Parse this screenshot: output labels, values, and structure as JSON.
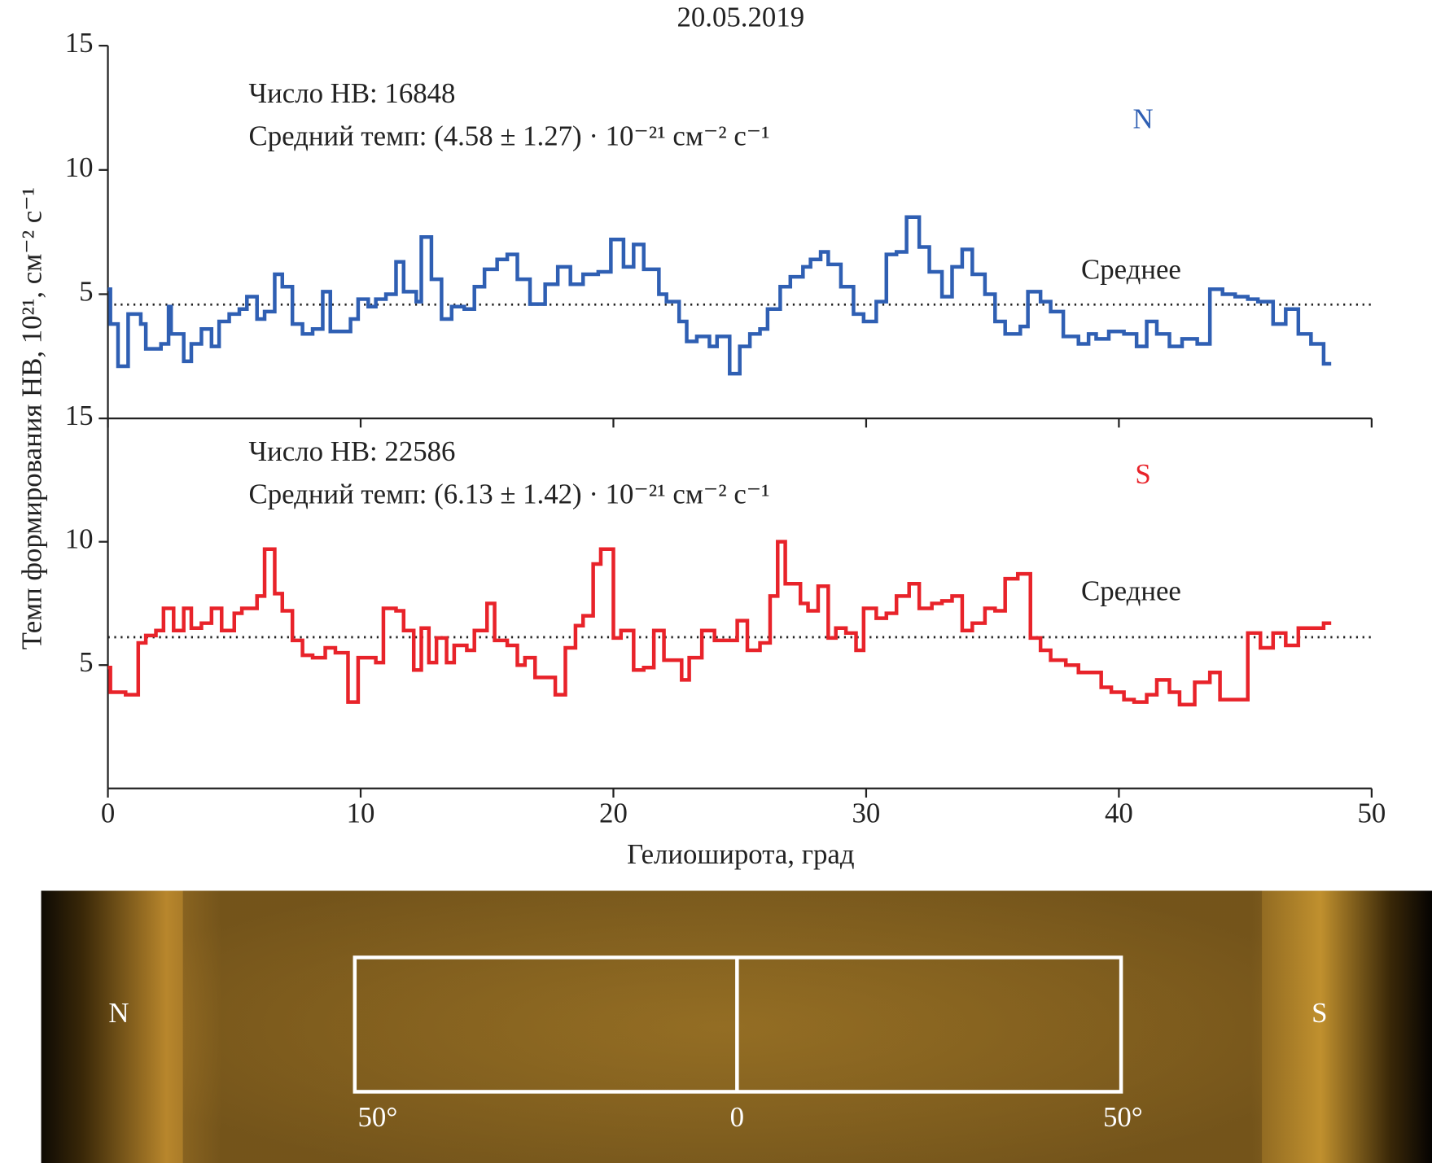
{
  "chart_data": [
    {
      "type": "line",
      "drawstyle": "steps-post",
      "title": "20.05.2019",
      "ylabel": "Темп формирования НВ, 10²¹, см⁻² с⁻¹",
      "ylim": [
        0,
        15
      ],
      "yticks": [
        5,
        10,
        15
      ],
      "annotations": [
        "Число НВ: 16848",
        "Средний темп: (4.58 ± 1.27) · 10⁻²¹ см⁻² с⁻¹"
      ],
      "hemisphere": "N",
      "mean": 4.58,
      "mean_label": "Среднее",
      "series": [
        {
          "name": "N",
          "color": "#2f5fb3",
          "x": [
            0.0,
            0.1,
            0.4,
            0.8,
            1.3,
            1.5,
            2.1,
            2.4,
            2.5,
            3.0,
            3.3,
            3.7,
            4.1,
            4.4,
            4.8,
            5.2,
            5.5,
            5.9,
            6.2,
            6.6,
            6.9,
            7.3,
            7.7,
            8.1,
            8.5,
            8.8,
            9.6,
            9.9,
            10.3,
            10.6,
            11.0,
            11.4,
            11.7,
            12.2,
            12.4,
            12.8,
            13.2,
            13.6,
            14.1,
            14.5,
            14.9,
            15.4,
            15.8,
            16.2,
            16.7,
            17.3,
            17.8,
            18.3,
            18.8,
            19.4,
            19.9,
            20.4,
            20.8,
            21.2,
            21.8,
            22.1,
            22.6,
            22.9,
            23.3,
            23.8,
            24.1,
            24.6,
            25.0,
            25.4,
            25.8,
            26.1,
            26.6,
            27.0,
            27.5,
            27.8,
            28.2,
            28.5,
            29.0,
            29.5,
            29.9,
            30.4,
            30.8,
            31.2,
            31.6,
            32.1,
            32.5,
            33.0,
            33.4,
            33.8,
            34.2,
            34.7,
            35.1,
            35.5,
            36.1,
            36.4,
            36.9,
            37.3,
            37.8,
            38.4,
            38.8,
            39.1,
            39.6,
            40.2,
            40.7,
            41.1,
            41.5,
            42.0,
            42.5,
            43.1,
            43.6,
            44.1,
            44.6,
            45.1,
            45.5,
            46.1,
            46.6,
            47.1,
            47.6,
            48.1,
            48.4
          ],
          "values": [
            5.2,
            3.8,
            2.1,
            4.2,
            3.8,
            2.8,
            3.0,
            4.5,
            3.4,
            2.3,
            3.0,
            3.6,
            2.9,
            3.9,
            4.2,
            4.4,
            4.9,
            4.0,
            4.3,
            5.8,
            5.3,
            3.8,
            3.4,
            3.6,
            5.1,
            3.5,
            4.0,
            4.8,
            4.5,
            4.8,
            5.0,
            6.3,
            5.1,
            4.7,
            7.3,
            5.6,
            4.0,
            4.5,
            4.4,
            5.3,
            6.0,
            6.4,
            6.6,
            5.6,
            4.6,
            5.4,
            6.1,
            5.4,
            5.8,
            5.9,
            7.2,
            6.1,
            7.0,
            6.0,
            5.0,
            4.7,
            3.9,
            3.1,
            3.3,
            2.9,
            3.3,
            1.8,
            2.9,
            3.4,
            3.6,
            4.4,
            5.3,
            5.7,
            6.1,
            6.4,
            6.7,
            6.2,
            5.3,
            4.2,
            3.9,
            4.7,
            6.6,
            6.7,
            8.1,
            6.9,
            5.9,
            4.9,
            6.1,
            6.8,
            5.8,
            5.0,
            3.9,
            3.4,
            3.7,
            5.1,
            4.7,
            4.3,
            3.3,
            3.0,
            3.4,
            3.2,
            3.5,
            3.4,
            2.9,
            3.9,
            3.4,
            2.9,
            3.2,
            3.0,
            5.2,
            5.0,
            4.9,
            4.8,
            4.7,
            3.8,
            4.4,
            3.4,
            3.0,
            2.2,
            2.2
          ]
        }
      ]
    },
    {
      "type": "line",
      "drawstyle": "steps-post",
      "xlabel": "Гелиоширота, град",
      "xlim": [
        0,
        50
      ],
      "xticks": [
        0,
        10,
        20,
        30,
        40,
        50
      ],
      "ylim": [
        0,
        15
      ],
      "yticks": [
        5,
        10,
        15
      ],
      "annotations": [
        "Число НВ: 22586",
        "Средний темп: (6.13 ± 1.42) · 10⁻²¹ см⁻² с⁻¹"
      ],
      "hemisphere": "S",
      "mean": 6.13,
      "mean_label": "Среднее",
      "series": [
        {
          "name": "S",
          "color": "#e8232a",
          "x": [
            0.0,
            0.1,
            0.7,
            1.2,
            1.5,
            1.9,
            2.2,
            2.6,
            3.0,
            3.3,
            3.7,
            4.1,
            4.5,
            5.0,
            5.3,
            5.9,
            6.2,
            6.6,
            6.9,
            7.3,
            7.7,
            8.1,
            8.6,
            9.0,
            9.5,
            9.9,
            10.6,
            10.9,
            11.4,
            11.7,
            12.1,
            12.4,
            12.7,
            13.0,
            13.4,
            13.7,
            14.2,
            14.5,
            15.0,
            15.3,
            15.8,
            16.2,
            16.5,
            16.9,
            17.7,
            18.1,
            18.5,
            18.8,
            19.2,
            19.5,
            20.0,
            20.3,
            20.8,
            21.2,
            21.6,
            22.0,
            22.7,
            23.0,
            23.5,
            24.0,
            24.9,
            25.3,
            25.8,
            26.2,
            26.5,
            26.8,
            27.4,
            27.7,
            28.1,
            28.5,
            28.8,
            29.2,
            29.6,
            29.9,
            30.4,
            30.8,
            31.2,
            31.7,
            32.1,
            32.6,
            33.0,
            33.4,
            33.8,
            34.2,
            34.7,
            35.1,
            35.5,
            36.0,
            36.5,
            36.9,
            37.3,
            37.9,
            38.4,
            39.3,
            39.7,
            40.2,
            40.6,
            41.1,
            41.5,
            42.0,
            42.4,
            43.0,
            43.6,
            44.0,
            45.1,
            45.6,
            46.1,
            46.6,
            47.1,
            48.1,
            48.4
          ],
          "values": [
            4.9,
            3.9,
            3.8,
            5.9,
            6.2,
            6.4,
            7.3,
            6.4,
            7.3,
            6.5,
            6.7,
            7.3,
            6.4,
            7.1,
            7.3,
            7.8,
            9.7,
            7.9,
            7.2,
            6.0,
            5.4,
            5.3,
            5.7,
            5.5,
            3.5,
            5.3,
            5.1,
            7.3,
            7.2,
            6.4,
            4.8,
            6.5,
            5.1,
            6.1,
            5.1,
            5.8,
            5.6,
            6.4,
            7.5,
            6.0,
            5.8,
            5.0,
            5.3,
            4.5,
            3.8,
            5.7,
            6.6,
            7.0,
            9.1,
            9.7,
            6.1,
            6.4,
            4.8,
            4.9,
            6.4,
            5.2,
            4.4,
            5.3,
            6.4,
            6.0,
            6.8,
            5.6,
            5.9,
            7.8,
            10.0,
            8.3,
            7.5,
            7.2,
            8.2,
            6.1,
            6.5,
            6.3,
            5.6,
            7.3,
            6.9,
            7.1,
            7.8,
            8.3,
            7.3,
            7.5,
            7.6,
            7.8,
            6.4,
            6.7,
            7.3,
            7.2,
            8.5,
            8.7,
            6.1,
            5.6,
            5.2,
            5.0,
            4.7,
            4.1,
            3.9,
            3.6,
            3.5,
            3.8,
            4.4,
            3.9,
            3.4,
            4.3,
            4.7,
            3.6,
            6.3,
            5.7,
            6.3,
            5.8,
            6.5,
            6.7,
            6.7
          ]
        }
      ]
    }
  ],
  "image": {
    "north": "N",
    "south": "S",
    "left_label": "50°",
    "center_label": "0",
    "right_label": "50°"
  }
}
